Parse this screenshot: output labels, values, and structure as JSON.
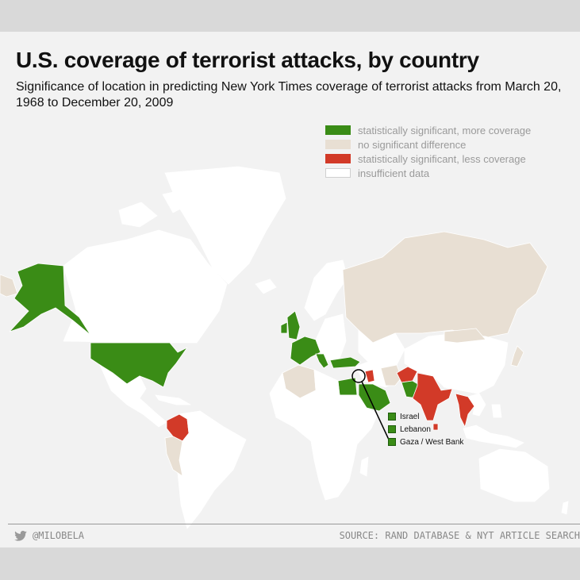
{
  "title": "U.S. coverage of terrorist attacks, by country",
  "subtitle": "Significance of location in predicting New York Times coverage of terrorist attacks from March 20, 1968 to December 20, 2009",
  "colors": {
    "more": "#3a8c16",
    "none": "#e8dfd3",
    "less": "#d23a28",
    "insufficient": "#ffffff"
  },
  "legend": [
    {
      "label": "statistically significant, more coverage",
      "color": "#3a8c16"
    },
    {
      "label": "no significant difference",
      "color": "#e8dfd3"
    },
    {
      "label": "statistically significant, less coverage",
      "color": "#d23a28"
    },
    {
      "label": "insufficient data",
      "color": "#ffffff"
    }
  ],
  "callout": {
    "items": [
      "Israel",
      "Lebanon",
      "Gaza / West Bank"
    ]
  },
  "footer": {
    "handle": "@MILOBELA",
    "source": "SOURCE: RAND DATABASE & NYT ARTICLE SEARCH",
    "icon": "twitter-bird-icon"
  }
}
